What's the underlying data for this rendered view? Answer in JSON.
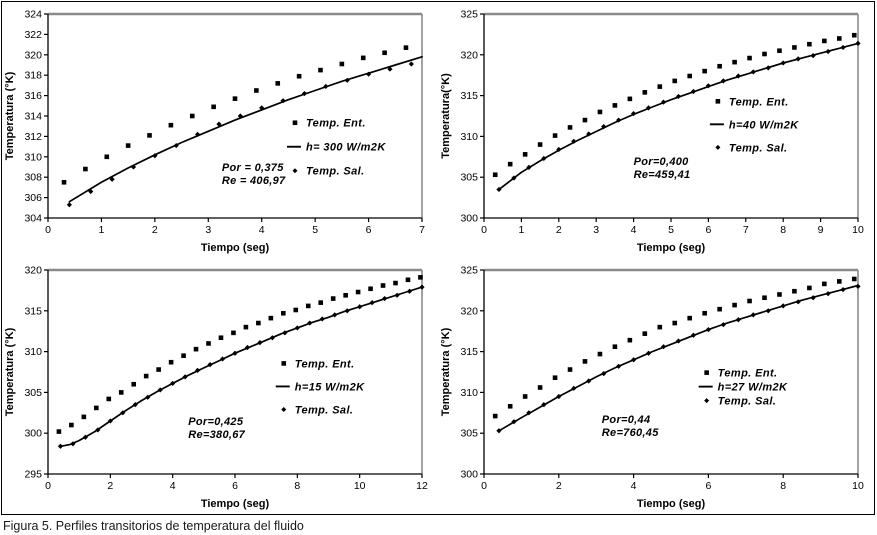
{
  "figure": {
    "caption": "Figura 5. Perfiles transitorios de temperatura del fluido"
  },
  "colors": {
    "ink": "#000000",
    "frame_gray": "#8a8a8a",
    "background": "#ffffff"
  },
  "chart_data": [
    {
      "type": "scatter",
      "title": "",
      "xlabel": "Tiempo (seg)",
      "ylabel": "Temperatura (°K)",
      "xlim": [
        0,
        7
      ],
      "xtick_step": 1,
      "ylim": [
        304,
        324
      ],
      "ytick_step": 2,
      "grid": false,
      "annotation": {
        "lines": [
          "Por = 0,375",
          "Re = 406,97"
        ],
        "pos": [
          0.465,
          0.77
        ]
      },
      "legend": {
        "pos": [
          0.655,
          0.56
        ],
        "row_gap": 24,
        "entries": [
          {
            "label": "Temp. Ent.",
            "marker": "square"
          },
          {
            "label": "h= 300 W/m2K",
            "marker": "line"
          },
          {
            "label": "Temp. Sal.",
            "marker": "diamond"
          }
        ]
      },
      "series": [
        {
          "name": "h= 300 W/m2K",
          "style": "line",
          "x": [
            0.4,
            1.0,
            1.5,
            2.0,
            2.5,
            3.0,
            3.5,
            4.0,
            4.5,
            5.0,
            5.5,
            6.0,
            6.5,
            7.0
          ],
          "y": [
            305.6,
            307.5,
            308.9,
            310.2,
            311.4,
            312.5,
            313.6,
            314.6,
            315.6,
            316.5,
            317.4,
            318.2,
            319.0,
            319.8
          ]
        },
        {
          "name": "Temp. Sal.",
          "style": "markers",
          "marker": "diamond",
          "x": [
            0.4,
            0.8,
            1.2,
            1.6,
            2.0,
            2.4,
            2.8,
            3.2,
            3.6,
            4.0,
            4.4,
            4.8,
            5.2,
            5.6,
            6.0,
            6.4,
            6.8
          ],
          "y": [
            305.3,
            306.6,
            307.8,
            309.0,
            310.1,
            311.1,
            312.2,
            313.2,
            314.0,
            314.8,
            315.5,
            316.2,
            316.9,
            317.5,
            318.1,
            318.6,
            319.1
          ]
        },
        {
          "name": "Temp. Ent.",
          "style": "markers",
          "marker": "square",
          "x": [
            0.3,
            0.7,
            1.1,
            1.5,
            1.9,
            2.3,
            2.7,
            3.1,
            3.5,
            3.9,
            4.3,
            4.7,
            5.1,
            5.5,
            5.9,
            6.3,
            6.7
          ],
          "y": [
            307.5,
            308.8,
            310.0,
            311.1,
            312.1,
            313.1,
            314.0,
            314.9,
            315.7,
            316.5,
            317.2,
            317.9,
            318.5,
            319.1,
            319.7,
            320.2,
            320.7
          ]
        }
      ]
    },
    {
      "type": "scatter",
      "title": "",
      "xlabel": "Tiempo (seg)",
      "ylabel": "Temperatura(°K)",
      "xlim": [
        0,
        10
      ],
      "xtick_step": 1,
      "ylim": [
        300,
        325
      ],
      "ytick_step": 5,
      "grid": false,
      "annotation": {
        "lines": [
          "Por=0,400",
          "Re=459,41"
        ],
        "pos": [
          0.4,
          0.74
        ]
      },
      "legend": {
        "pos": [
          0.62,
          0.455
        ],
        "row_gap": 23,
        "entries": [
          {
            "label": "Temp. Ent.",
            "marker": "square"
          },
          {
            "label": "h=40 W/m2K",
            "marker": "line"
          },
          {
            "label": "Temp. Sal.",
            "marker": "diamond"
          }
        ]
      },
      "series": [
        {
          "name": "h=40 W/m2K",
          "style": "line",
          "x": [
            0.4,
            1.0,
            1.5,
            2.0,
            2.5,
            3.0,
            3.5,
            4.0,
            4.5,
            5.0,
            5.5,
            6.0,
            6.5,
            7.0,
            7.5,
            8.0,
            8.5,
            9.0,
            9.5,
            10.0
          ],
          "y": [
            303.5,
            305.6,
            307.0,
            308.3,
            309.5,
            310.6,
            311.7,
            312.7,
            313.6,
            314.5,
            315.3,
            316.1,
            316.9,
            317.6,
            318.3,
            319.0,
            319.6,
            320.2,
            320.8,
            321.4
          ]
        },
        {
          "name": "Temp. Sal.",
          "style": "markers",
          "marker": "diamond",
          "x": [
            0.4,
            0.8,
            1.2,
            1.6,
            2.0,
            2.4,
            2.8,
            3.2,
            3.6,
            4.0,
            4.4,
            4.8,
            5.2,
            5.6,
            6.0,
            6.4,
            6.8,
            7.2,
            7.6,
            8.0,
            8.4,
            8.8,
            9.2,
            9.6,
            10.0
          ],
          "y": [
            303.5,
            304.9,
            306.2,
            307.3,
            308.4,
            309.4,
            310.3,
            311.2,
            312.0,
            312.8,
            313.5,
            314.2,
            314.9,
            315.5,
            316.2,
            316.8,
            317.4,
            317.9,
            318.4,
            319.0,
            319.5,
            319.9,
            320.4,
            320.9,
            321.4
          ]
        },
        {
          "name": "Temp. Ent.",
          "style": "markers",
          "marker": "square",
          "x": [
            0.3,
            0.7,
            1.1,
            1.5,
            1.9,
            2.3,
            2.7,
            3.1,
            3.5,
            3.9,
            4.3,
            4.7,
            5.1,
            5.5,
            5.9,
            6.3,
            6.7,
            7.1,
            7.5,
            7.9,
            8.3,
            8.7,
            9.1,
            9.5,
            9.9
          ],
          "y": [
            305.3,
            306.6,
            307.8,
            309.0,
            310.1,
            311.1,
            312.0,
            313.0,
            313.8,
            314.6,
            315.4,
            316.1,
            316.8,
            317.4,
            318.0,
            318.6,
            319.1,
            319.6,
            320.1,
            320.5,
            320.9,
            321.3,
            321.7,
            322.0,
            322.4
          ]
        }
      ]
    },
    {
      "type": "scatter",
      "title": "",
      "xlabel": "Tiempo (seg)",
      "ylabel": "Temperatura (°K)",
      "xlim": [
        0,
        12
      ],
      "xtick_step": 2,
      "ylim": [
        295,
        320
      ],
      "ytick_step": 5,
      "grid": false,
      "annotation": {
        "lines": [
          "Por=0,425",
          "Re=380,67"
        ],
        "pos": [
          0.375,
          0.76
        ]
      },
      "legend": {
        "pos": [
          0.625,
          0.485
        ],
        "row_gap": 23,
        "entries": [
          {
            "label": "Temp. Ent.",
            "marker": "square"
          },
          {
            "label": "h=15 W/m2K",
            "marker": "line"
          },
          {
            "label": "Temp. Sal.",
            "marker": "diamond"
          }
        ]
      },
      "series": [
        {
          "name": "h=15 W/m2K",
          "style": "line",
          "x": [
            0.4,
            0.7,
            1.0,
            1.5,
            2.0,
            2.5,
            3.0,
            3.5,
            4.0,
            4.5,
            5.0,
            5.5,
            6.0,
            6.5,
            7.0,
            7.5,
            8.0,
            8.5,
            9.0,
            9.5,
            10.0,
            10.5,
            11.0,
            11.5,
            12.0
          ],
          "y": [
            298.4,
            298.6,
            299.1,
            300.2,
            301.5,
            302.8,
            304.0,
            305.1,
            306.1,
            307.1,
            308.0,
            308.9,
            309.8,
            310.6,
            311.4,
            312.2,
            312.9,
            313.6,
            314.2,
            314.9,
            315.5,
            316.1,
            316.7,
            317.3,
            317.9
          ]
        },
        {
          "name": "Temp. Sal.",
          "style": "markers",
          "marker": "diamond",
          "x": [
            0.4,
            0.8,
            1.2,
            1.6,
            2.0,
            2.4,
            2.8,
            3.2,
            3.6,
            4.0,
            4.4,
            4.8,
            5.2,
            5.6,
            6.0,
            6.4,
            6.8,
            7.2,
            7.6,
            8.0,
            8.4,
            8.8,
            9.2,
            9.6,
            10.0,
            10.4,
            10.8,
            11.2,
            11.6,
            12.0
          ],
          "y": [
            298.4,
            298.7,
            299.5,
            300.4,
            301.5,
            302.5,
            303.5,
            304.4,
            305.3,
            306.1,
            306.9,
            307.7,
            308.4,
            309.1,
            309.8,
            310.5,
            311.1,
            311.7,
            312.3,
            312.9,
            313.5,
            314.0,
            314.5,
            315.0,
            315.5,
            316.0,
            316.5,
            316.9,
            317.4,
            317.9
          ]
        },
        {
          "name": "Temp. Ent.",
          "style": "markers",
          "marker": "square",
          "x": [
            0.35,
            0.75,
            1.15,
            1.55,
            1.95,
            2.35,
            2.75,
            3.15,
            3.55,
            3.95,
            4.35,
            4.75,
            5.15,
            5.55,
            5.95,
            6.35,
            6.75,
            7.15,
            7.55,
            7.95,
            8.35,
            8.75,
            9.15,
            9.55,
            9.95,
            10.35,
            10.75,
            11.15,
            11.55,
            11.95
          ],
          "y": [
            300.2,
            301.0,
            302.0,
            303.1,
            304.2,
            305.0,
            306.0,
            307.0,
            307.8,
            308.7,
            309.5,
            310.3,
            311.0,
            311.7,
            312.3,
            313.0,
            313.5,
            314.1,
            314.7,
            315.1,
            315.6,
            316.0,
            316.5,
            316.9,
            317.3,
            317.7,
            318.1,
            318.4,
            318.8,
            319.1
          ]
        }
      ]
    },
    {
      "type": "scatter",
      "title": "",
      "xlabel": "Tiempo (seg)",
      "ylabel": "Temperatura (°K)",
      "xlim": [
        0,
        10
      ],
      "xtick_step": 2,
      "ylim": [
        300,
        325
      ],
      "ytick_step": 5,
      "grid": false,
      "annotation": {
        "lines": [
          "Por=0,44",
          "Re=760,45"
        ],
        "pos": [
          0.315,
          0.75
        ]
      },
      "legend": {
        "pos": [
          0.59,
          0.53
        ],
        "row_gap": 14,
        "entries": [
          {
            "label": "Temp. Ent.",
            "marker": "square"
          },
          {
            "label": "h=27 W/m2K",
            "marker": "line"
          },
          {
            "label": "Temp. Sal.",
            "marker": "diamond"
          }
        ]
      },
      "series": [
        {
          "name": "h=27 W/m2K",
          "style": "line",
          "x": [
            0.4,
            1.0,
            1.5,
            2.0,
            2.5,
            3.0,
            3.5,
            4.0,
            4.5,
            5.0,
            5.5,
            6.0,
            6.5,
            7.0,
            7.5,
            8.0,
            8.5,
            9.0,
            9.5,
            10.0
          ],
          "y": [
            305.3,
            306.9,
            308.2,
            309.5,
            310.7,
            311.9,
            313.0,
            314.0,
            315.0,
            315.9,
            316.8,
            317.7,
            318.5,
            319.2,
            319.9,
            320.6,
            321.3,
            321.9,
            322.5,
            323.1
          ]
        },
        {
          "name": "Temp. Sal.",
          "style": "markers",
          "marker": "diamond",
          "x": [
            0.4,
            0.8,
            1.2,
            1.6,
            2.0,
            2.4,
            2.8,
            3.2,
            3.6,
            4.0,
            4.4,
            4.8,
            5.2,
            5.6,
            6.0,
            6.4,
            6.8,
            7.2,
            7.6,
            8.0,
            8.4,
            8.8,
            9.2,
            9.6,
            10.0
          ],
          "y": [
            305.3,
            306.4,
            307.5,
            308.5,
            309.5,
            310.5,
            311.4,
            312.3,
            313.2,
            314.0,
            314.8,
            315.6,
            316.3,
            317.0,
            317.7,
            318.3,
            318.9,
            319.5,
            320.0,
            320.6,
            321.1,
            321.6,
            322.1,
            322.6,
            323.0
          ]
        },
        {
          "name": "Temp. Ent.",
          "style": "markers",
          "marker": "square",
          "x": [
            0.3,
            0.7,
            1.1,
            1.5,
            1.9,
            2.3,
            2.7,
            3.1,
            3.5,
            3.9,
            4.3,
            4.7,
            5.1,
            5.5,
            5.9,
            6.3,
            6.7,
            7.1,
            7.5,
            7.9,
            8.3,
            8.7,
            9.1,
            9.5,
            9.9
          ],
          "y": [
            307.1,
            308.3,
            309.5,
            310.6,
            311.8,
            312.8,
            313.8,
            314.7,
            315.6,
            316.4,
            317.2,
            318.0,
            318.5,
            319.1,
            319.7,
            320.2,
            320.7,
            321.2,
            321.6,
            322.0,
            322.4,
            322.8,
            323.3,
            323.6,
            323.9
          ]
        }
      ]
    }
  ]
}
